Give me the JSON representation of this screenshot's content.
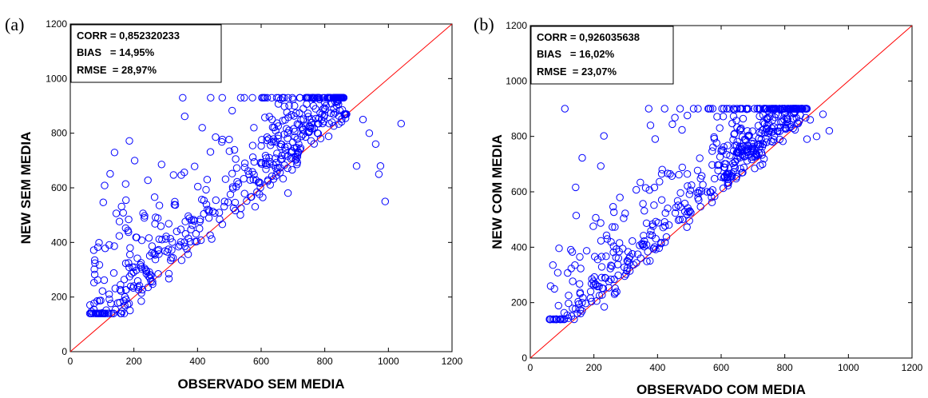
{
  "chart_data": [
    {
      "type": "scatter",
      "panel_label": "(a)",
      "xlabel": "OBSERVADO SEM MEDIA",
      "ylabel": "NEW SEM MEDIA",
      "xlim": [
        0,
        1200
      ],
      "ylim": [
        0,
        1200
      ],
      "xticks": [
        0,
        200,
        400,
        600,
        800,
        1000,
        1200
      ],
      "yticks": [
        0,
        200,
        400,
        600,
        800,
        1000,
        1200
      ],
      "stats": [
        "CORR = 0,852320233",
        "BIAS   = 14,95%",
        "RMSE  = 28,97%"
      ],
      "reference_line": "y = x",
      "marker_color": "#0000ff",
      "line_color": "#ff0000",
      "seed": 11
    },
    {
      "type": "scatter",
      "panel_label": "(b)",
      "xlabel": "OBSERVADO COM MEDIA",
      "ylabel": "NEW COM MEDIA",
      "xlim": [
        0,
        1200
      ],
      "ylim": [
        0,
        1200
      ],
      "xticks": [
        0,
        200,
        400,
        600,
        800,
        1000,
        1200
      ],
      "yticks": [
        0,
        200,
        400,
        600,
        800,
        1000,
        1200
      ],
      "stats": [
        "CORR = 0,926035638",
        "BIAS   = 16,02%",
        "RMSE  = 23,07%"
      ],
      "reference_line": "y = x",
      "marker_color": "#0000ff",
      "line_color": "#ff0000",
      "seed": 29
    }
  ]
}
